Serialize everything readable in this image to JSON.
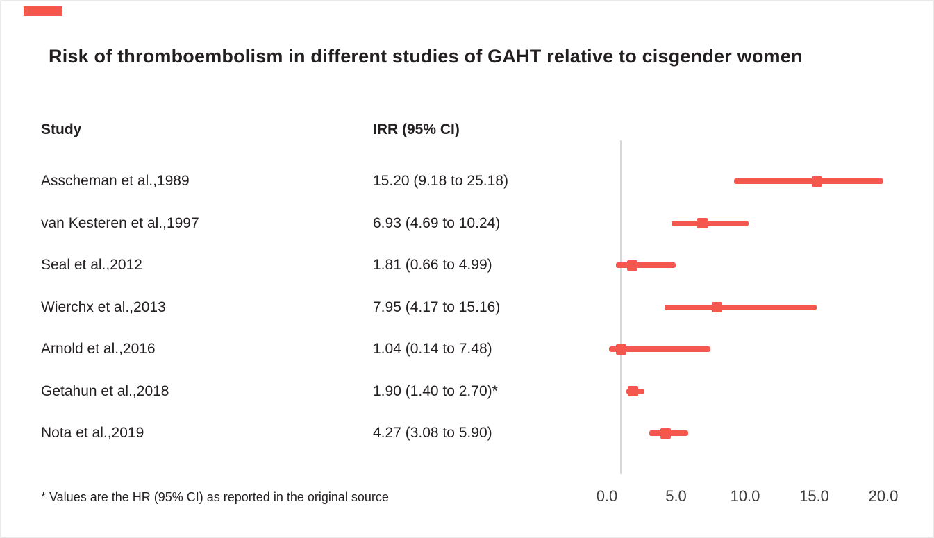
{
  "chart_data": {
    "type": "forest",
    "title": "Risk of thromboembolism in different studies of GAHT relative to cisgender women",
    "columns": {
      "study": "Study",
      "irr": "IRR (95% CI)"
    },
    "footnote": "* Values are the HR (95% CI) as reported in the original source",
    "xlabel": "",
    "xlim": [
      0,
      20
    ],
    "x_tick_values": [
      0,
      5,
      10,
      15,
      20
    ],
    "x_ticks": [
      "0.0",
      "5.0",
      "10.0",
      "15.0",
      "20.0"
    ],
    "reference_line": 1.0,
    "grid": false,
    "marker_color": "#f4574e",
    "reference_line_color": "#d8d8d8",
    "studies": [
      {
        "label": "Asscheman et al.,1989",
        "value_text": "15.20 (9.18 to 25.18)",
        "est": 15.2,
        "lo": 9.18,
        "hi": 25.18
      },
      {
        "label": "van Kesteren et al.,1997",
        "value_text": "6.93 (4.69 to 10.24)",
        "est": 6.93,
        "lo": 4.69,
        "hi": 10.24
      },
      {
        "label": "Seal et al.,2012",
        "value_text": "1.81 (0.66 to 4.99)",
        "est": 1.81,
        "lo": 0.66,
        "hi": 4.99
      },
      {
        "label": "Wierchx et al.,2013",
        "value_text": "7.95 (4.17 to 15.16)",
        "est": 7.95,
        "lo": 4.17,
        "hi": 15.16
      },
      {
        "label": "Arnold et al.,2016",
        "value_text": "1.04 (0.14 to 7.48)",
        "est": 1.04,
        "lo": 0.14,
        "hi": 7.48
      },
      {
        "label": "Getahun et al.,2018",
        "value_text": "1.90 (1.40 to 2.70)*",
        "est": 1.9,
        "lo": 1.4,
        "hi": 2.7
      },
      {
        "label": "Nota et al.,2019",
        "value_text": "4.27 (3.08 to 5.90)",
        "est": 4.27,
        "lo": 3.08,
        "hi": 5.9
      }
    ]
  }
}
